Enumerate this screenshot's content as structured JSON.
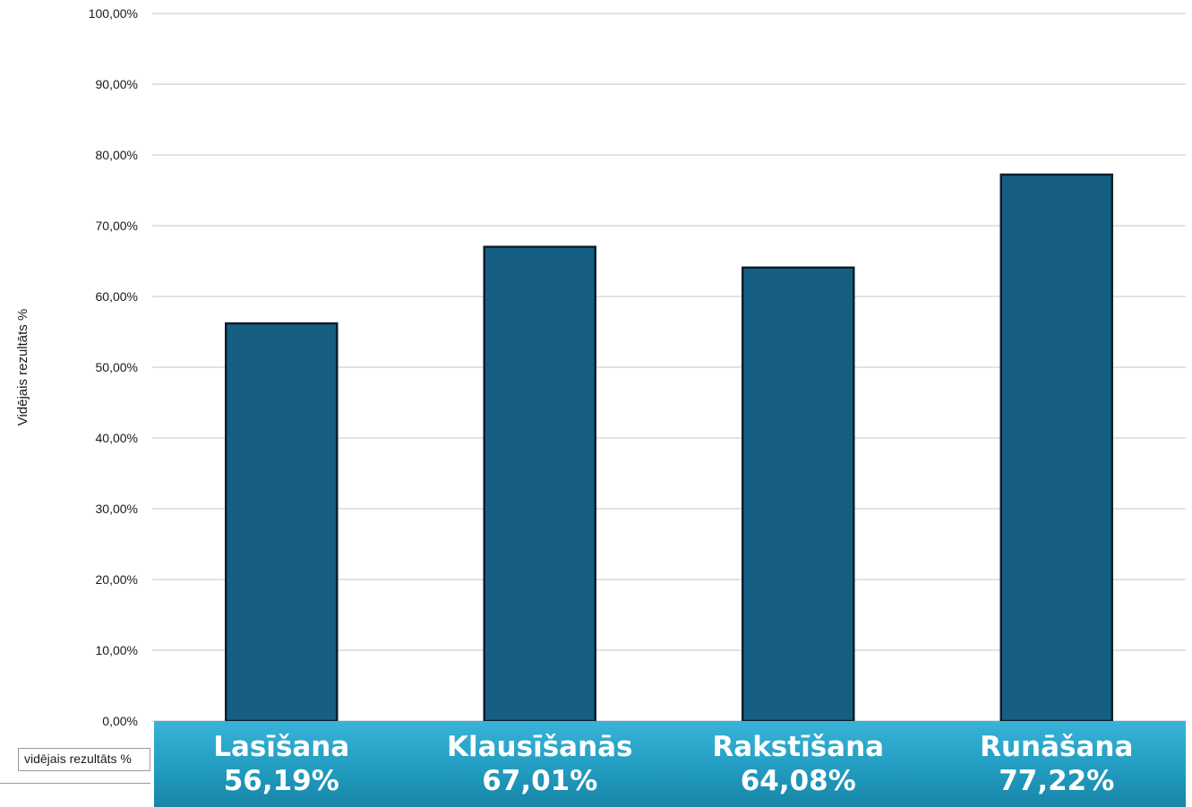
{
  "chart_data": {
    "type": "bar",
    "categories": [
      "Lasīšana",
      "Klausīšanās",
      "Rakstīšana",
      "Runāšana"
    ],
    "value_labels": [
      "56,19%",
      "67,01%",
      "64,08%",
      "77,22%"
    ],
    "series": [
      {
        "name": "vidējais rezultāts %",
        "values": [
          56.19,
          67.01,
          64.08,
          77.22
        ]
      }
    ],
    "ylabel": "Vidējais rezultāts %",
    "yticks": [
      "0,00%",
      "10,00%",
      "20,00%",
      "30,00%",
      "40,00%",
      "50,00%",
      "60,00%",
      "70,00%",
      "80,00%",
      "90,00%",
      "100,00%"
    ],
    "ylim": [
      0,
      100
    ],
    "grid": true,
    "legend_placement": "bottom-left",
    "colors": {
      "bar": "#165f83",
      "bar_border": "#0a1f2e",
      "banner": "#249fc3"
    }
  }
}
